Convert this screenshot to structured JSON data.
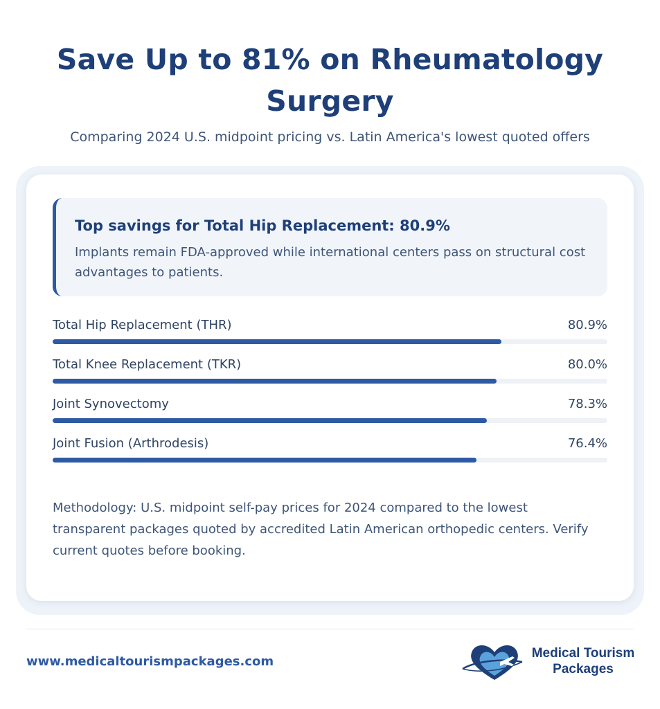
{
  "header": {
    "title_line1": "Save Up to 81% on Rheumatology",
    "title_line2": "Surgery",
    "subtitle": "Comparing 2024 U.S. midpoint pricing vs. Latin America's lowest quoted offers"
  },
  "callout": {
    "title": "Top savings for Total Hip Replacement: 80.9%",
    "body": "Implants remain FDA-approved while international centers pass on structural cost advantages to patients."
  },
  "chart_data": {
    "type": "bar",
    "orientation": "horizontal",
    "categories": [
      "Total Hip Replacement (THR)",
      "Total Knee Replacement (TKR)",
      "Joint Synovectomy",
      "Joint Fusion (Arthrodesis)"
    ],
    "values": [
      80.9,
      80.0,
      78.3,
      76.4
    ],
    "value_labels": [
      "80.9%",
      "80.0%",
      "78.3%",
      "76.4%"
    ],
    "xlim": [
      0,
      100
    ],
    "bar_color": "#2e5aa3",
    "track_color": "#eef1f5"
  },
  "methodology": "Methodology: U.S. midpoint self-pay prices for 2024 compared to the lowest transparent packages quoted by accredited Latin American orthopedic centers. Verify current quotes before booking.",
  "footer": {
    "url": "www.medicaltourismpackages.com",
    "logo_line1": "Medical Tourism",
    "logo_line2": "Packages"
  },
  "colors": {
    "brand_dark": "#1e3f78",
    "brand_accent": "#2e5aa3",
    "heart_light": "#5aa2dc"
  },
  "icons": {
    "logo": "heart-airplane-icon"
  }
}
